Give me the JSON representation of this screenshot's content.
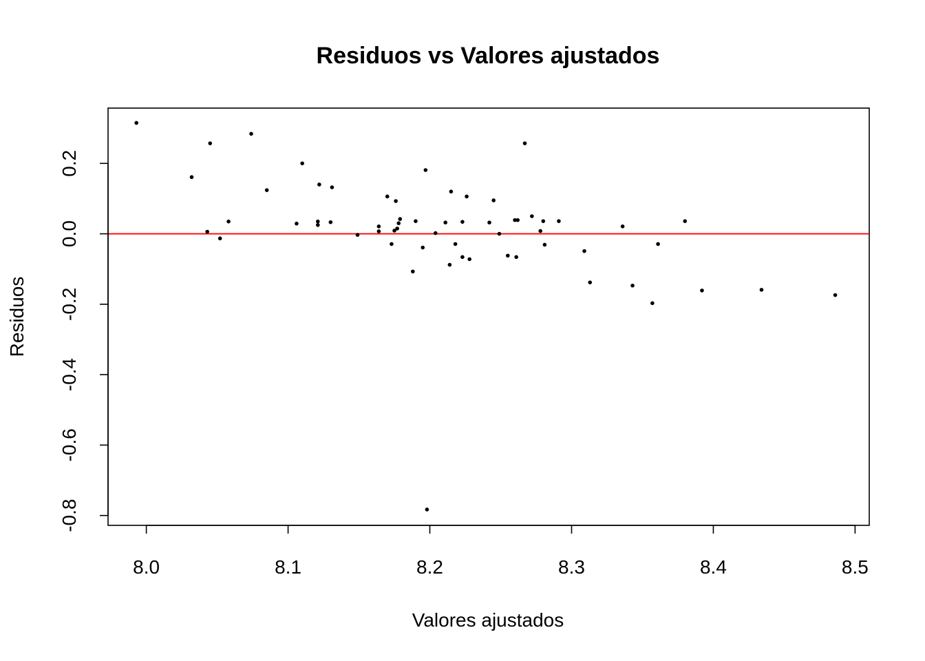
{
  "chart_data": {
    "type": "scatter",
    "title": "Residuos vs Valores ajustados",
    "xlabel": "Valores ajustados",
    "ylabel": "Residuos",
    "xlim": [
      7.973,
      8.51
    ],
    "ylim": [
      -0.828,
      0.357
    ],
    "x_ticks": [
      8.0,
      8.1,
      8.2,
      8.3,
      8.4,
      8.5
    ],
    "x_tick_labels": [
      "8.0",
      "8.1",
      "8.2",
      "8.3",
      "8.4",
      "8.5"
    ],
    "y_ticks": [
      -0.8,
      -0.6,
      -0.4,
      -0.2,
      0.0,
      0.2
    ],
    "y_tick_labels": [
      "-0.8",
      "-0.6",
      "-0.4",
      "-0.2",
      "0.0",
      "0.2"
    ],
    "grid": false,
    "reference_line": {
      "y": 0.0,
      "color": "#ff0000"
    },
    "point_color": "#000000",
    "points": [
      {
        "x": 7.993,
        "y": 0.315
      },
      {
        "x": 8.032,
        "y": 0.161
      },
      {
        "x": 8.043,
        "y": 0.006
      },
      {
        "x": 8.045,
        "y": 0.257
      },
      {
        "x": 8.052,
        "y": -0.013
      },
      {
        "x": 8.058,
        "y": 0.035
      },
      {
        "x": 8.074,
        "y": 0.284
      },
      {
        "x": 8.085,
        "y": 0.124
      },
      {
        "x": 8.106,
        "y": 0.029
      },
      {
        "x": 8.11,
        "y": 0.2
      },
      {
        "x": 8.121,
        "y": 0.025
      },
      {
        "x": 8.121,
        "y": 0.035
      },
      {
        "x": 8.122,
        "y": 0.14
      },
      {
        "x": 8.13,
        "y": 0.033
      },
      {
        "x": 8.131,
        "y": 0.132
      },
      {
        "x": 8.149,
        "y": -0.003
      },
      {
        "x": 8.164,
        "y": 0.007
      },
      {
        "x": 8.164,
        "y": 0.021
      },
      {
        "x": 8.17,
        "y": 0.106
      },
      {
        "x": 8.173,
        "y": -0.029
      },
      {
        "x": 8.175,
        "y": 0.009
      },
      {
        "x": 8.176,
        "y": 0.093
      },
      {
        "x": 8.177,
        "y": 0.015
      },
      {
        "x": 8.178,
        "y": 0.03
      },
      {
        "x": 8.179,
        "y": 0.042
      },
      {
        "x": 8.188,
        "y": -0.107
      },
      {
        "x": 8.19,
        "y": 0.036
      },
      {
        "x": 8.195,
        "y": -0.039
      },
      {
        "x": 8.197,
        "y": 0.181
      },
      {
        "x": 8.198,
        "y": -0.783
      },
      {
        "x": 8.204,
        "y": 0.002
      },
      {
        "x": 8.211,
        "y": 0.032
      },
      {
        "x": 8.214,
        "y": -0.088
      },
      {
        "x": 8.215,
        "y": 0.12
      },
      {
        "x": 8.218,
        "y": -0.029
      },
      {
        "x": 8.223,
        "y": -0.066
      },
      {
        "x": 8.223,
        "y": 0.034
      },
      {
        "x": 8.226,
        "y": 0.106
      },
      {
        "x": 8.228,
        "y": -0.072
      },
      {
        "x": 8.242,
        "y": 0.032
      },
      {
        "x": 8.245,
        "y": 0.095
      },
      {
        "x": 8.249,
        "y": 0.0
      },
      {
        "x": 8.255,
        "y": -0.062
      },
      {
        "x": 8.26,
        "y": 0.039
      },
      {
        "x": 8.261,
        "y": -0.066
      },
      {
        "x": 8.262,
        "y": 0.039
      },
      {
        "x": 8.267,
        "y": 0.257
      },
      {
        "x": 8.272,
        "y": 0.05
      },
      {
        "x": 8.278,
        "y": 0.008
      },
      {
        "x": 8.28,
        "y": 0.036
      },
      {
        "x": 8.281,
        "y": -0.031
      },
      {
        "x": 8.291,
        "y": 0.036
      },
      {
        "x": 8.309,
        "y": -0.049
      },
      {
        "x": 8.313,
        "y": -0.138
      },
      {
        "x": 8.336,
        "y": 0.021
      },
      {
        "x": 8.343,
        "y": -0.147
      },
      {
        "x": 8.357,
        "y": -0.197
      },
      {
        "x": 8.361,
        "y": -0.029
      },
      {
        "x": 8.38,
        "y": 0.036
      },
      {
        "x": 8.392,
        "y": -0.161
      },
      {
        "x": 8.434,
        "y": -0.159
      },
      {
        "x": 8.486,
        "y": -0.174
      }
    ]
  }
}
